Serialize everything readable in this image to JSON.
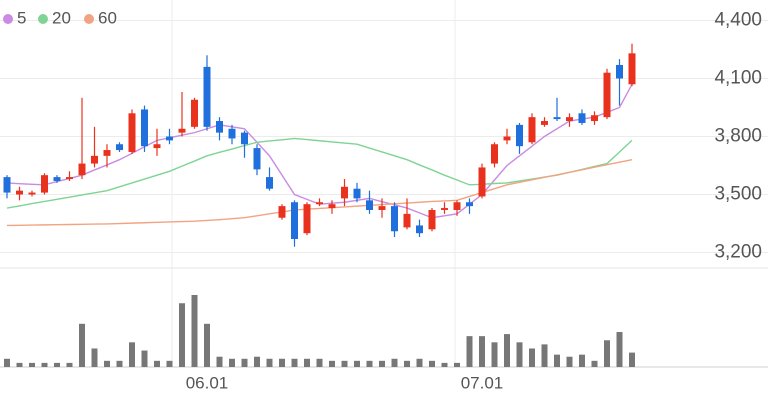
{
  "chart_data": {
    "type": "candlestick",
    "categories": [
      null,
      null,
      null,
      null,
      null,
      null,
      null,
      null,
      null,
      null,
      null,
      null,
      null,
      null,
      null,
      null,
      "06.01",
      null,
      null,
      null,
      null,
      null,
      null,
      null,
      null,
      null,
      null,
      null,
      null,
      null,
      null,
      null,
      null,
      null,
      null,
      null,
      null,
      null,
      "07.01",
      null,
      null,
      null,
      null,
      null,
      null,
      null,
      null,
      null,
      null,
      null,
      null
    ],
    "open": [
      3590,
      3500,
      3500,
      3510,
      3590,
      3580,
      3600,
      3660,
      3700,
      3760,
      3720,
      3940,
      3740,
      3800,
      3820,
      3850,
      4160,
      3880,
      3840,
      3820,
      3740,
      3590,
      3380,
      3460,
      3300,
      3450,
      3430,
      3480,
      3530,
      3470,
      3420,
      3440,
      3330,
      3340,
      3320,
      3420,
      3420,
      3460,
      3490,
      3660,
      3780,
      3860,
      3770,
      3860,
      3900,
      3880,
      3920,
      3880,
      3900,
      4170,
      4070
    ],
    "high": [
      3600,
      3540,
      3520,
      3610,
      3600,
      3620,
      4000,
      3850,
      3760,
      3770,
      3940,
      3960,
      3840,
      3840,
      4030,
      4000,
      4220,
      3900,
      3860,
      3830,
      3760,
      3640,
      3450,
      3470,
      3460,
      3480,
      3470,
      3580,
      3560,
      3520,
      3480,
      3460,
      3480,
      3370,
      3430,
      3460,
      3470,
      3480,
      3660,
      3770,
      3840,
      3870,
      3920,
      3900,
      4000,
      3920,
      3940,
      3930,
      4150,
      4200,
      4280
    ],
    "low": [
      3480,
      3470,
      3490,
      3500,
      3560,
      3570,
      3580,
      3640,
      3640,
      3720,
      3710,
      3720,
      3700,
      3760,
      3800,
      3840,
      3830,
      3780,
      3760,
      3690,
      3600,
      3520,
      3370,
      3230,
      3290,
      3440,
      3400,
      3440,
      3460,
      3400,
      3380,
      3280,
      3320,
      3280,
      3310,
      3400,
      3390,
      3400,
      3480,
      3640,
      3760,
      3710,
      3760,
      3850,
      3880,
      3850,
      3860,
      3860,
      3890,
      3960,
      4060
    ],
    "close": [
      3510,
      3520,
      3510,
      3600,
      3570,
      3590,
      3660,
      3700,
      3730,
      3730,
      3920,
      3750,
      3760,
      3780,
      3840,
      3990,
      3850,
      3820,
      3790,
      3760,
      3630,
      3530,
      3440,
      3270,
      3450,
      3460,
      3450,
      3540,
      3480,
      3420,
      3440,
      3310,
      3400,
      3300,
      3420,
      3430,
      3460,
      3440,
      3640,
      3760,
      3800,
      3750,
      3900,
      3880,
      3890,
      3900,
      3870,
      3910,
      4130,
      4100,
      4230
    ],
    "volume": [
      8,
      4,
      4,
      4,
      4,
      4,
      42,
      18,
      6,
      6,
      24,
      16,
      6,
      6,
      62,
      70,
      42,
      10,
      8,
      8,
      10,
      8,
      8,
      8,
      8,
      8,
      6,
      6,
      6,
      6,
      6,
      8,
      6,
      8,
      6,
      4,
      4,
      30,
      30,
      24,
      32,
      24,
      18,
      22,
      12,
      10,
      12,
      6,
      26,
      34,
      14
    ],
    "up_color": "#e8321e",
    "down_color": "#1f6fdc",
    "volume_color": "#777777",
    "series": [
      {
        "name": "5",
        "color": "#c98be3",
        "values": [
          3560,
          3556,
          3553,
          3550,
          3567,
          3583,
          3600,
          3627,
          3653,
          3680,
          3713,
          3747,
          3780,
          3793,
          3807,
          3820,
          3840,
          3860,
          3850,
          3840,
          3770,
          3700,
          3600,
          3500,
          3475,
          3450,
          3455,
          3460,
          3470,
          3480,
          3463,
          3447,
          3430,
          3405,
          3380,
          3390,
          3400,
          3450,
          3500,
          3575,
          3650,
          3700,
          3750,
          3800,
          3840,
          3880,
          3890,
          3900,
          3925,
          3950,
          4070
        ]
      },
      {
        "name": "20",
        "color": "#7fd493",
        "values": [
          3430,
          3441,
          3453,
          3464,
          3475,
          3486,
          3498,
          3509,
          3520,
          3540,
          3560,
          3580,
          3600,
          3620,
          3647,
          3673,
          3700,
          3718,
          3735,
          3753,
          3770,
          3777,
          3783,
          3790,
          3784,
          3778,
          3772,
          3766,
          3760,
          3740,
          3720,
          3700,
          3680,
          3653,
          3627,
          3600,
          3575,
          3550,
          3553,
          3557,
          3560,
          3570,
          3580,
          3590,
          3600,
          3615,
          3630,
          3645,
          3660,
          3720,
          3780
        ]
      },
      {
        "name": "60",
        "color": "#f2a482",
        "values": [
          3340,
          3341,
          3342,
          3343,
          3344,
          3345,
          3346,
          3347,
          3348,
          3350,
          3352,
          3354,
          3356,
          3358,
          3360,
          3362,
          3366,
          3370,
          3375,
          3380,
          3390,
          3400,
          3410,
          3420,
          3424,
          3428,
          3432,
          3436,
          3440,
          3444,
          3448,
          3452,
          3456,
          3460,
          3464,
          3467,
          3470,
          3490,
          3510,
          3530,
          3550,
          3563,
          3576,
          3589,
          3602,
          3615,
          3628,
          3641,
          3654,
          3667,
          3680
        ]
      }
    ],
    "ylim": [
      3120,
      4480
    ],
    "yticks": [
      {
        "value": 4400,
        "label": "4,400"
      },
      {
        "value": 4100,
        "label": "4,100"
      },
      {
        "value": 3800,
        "label": "3,800"
      },
      {
        "value": 3500,
        "label": "3,500"
      },
      {
        "value": 3200,
        "label": "3,200"
      }
    ],
    "grid": true
  }
}
